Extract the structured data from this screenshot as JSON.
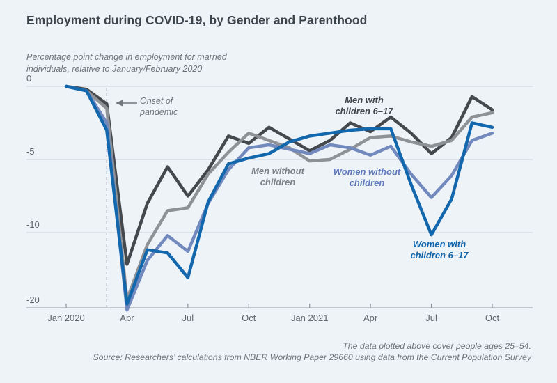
{
  "page": {
    "title": "Employment during COVID-19, by Gender and Parenthood",
    "subtitle_line1": "Percentage point change in employment for married",
    "subtitle_line2": "individuals, relative to January/February 2020",
    "footnote_line1": "The data plotted above cover people ages 25–54.",
    "footnote_line2": "Source: Researchers’ calculations from NBER Working Paper 29660 using data from the Current Population Survey"
  },
  "chart_data": {
    "type": "line",
    "title": "Employment during COVID-19, by Gender and Parenthood",
    "subtitle": "Percentage point change in employment for married individuals, relative to January/February 2020",
    "x": [
      "Jan 2020",
      "Feb 2020",
      "Mar 2020",
      "Apr 2020",
      "May 2020",
      "Jun 2020",
      "Jul 2020",
      "Aug 2020",
      "Sep 2020",
      "Oct 2020",
      "Nov 2020",
      "Dec 2020",
      "Jan 2021",
      "Feb 2021",
      "Mar 2021",
      "Apr 2021",
      "May 2021",
      "Jun 2021",
      "Jul 2021",
      "Aug 2021",
      "Sep 2021",
      "Oct 2021"
    ],
    "x_tick_positions": [
      0,
      3,
      6,
      9,
      12,
      15,
      18,
      21
    ],
    "x_tick_labels": [
      "Jan 2020",
      "Apr",
      "Jul",
      "Oct",
      "Jan 2021",
      "Apr",
      "Jul",
      "Oct"
    ],
    "y_ticks": [
      0,
      -5,
      -10,
      -20
    ],
    "ylim": [
      -20.5,
      0.5
    ],
    "grid": "horizontal gridlines at 0, -5, -10; axis line at -20; segment below -10 is compressed",
    "legend_position": "labels placed next to lines",
    "annotation": {
      "lines": [
        "Onset of",
        "pandemic"
      ],
      "points_to": "Mar 2020",
      "style": "dashed vertical line with left arrow"
    },
    "series": [
      {
        "name": "Men with children 6-17",
        "label_lines": [
          "Men with",
          "children 6–17"
        ],
        "color": "#45494e",
        "values": [
          0,
          -0.2,
          -1.2,
          -14.2,
          -8.0,
          -5.5,
          -7.5,
          -5.7,
          -3.4,
          -3.9,
          -2.8,
          -3.6,
          -4.4,
          -3.7,
          -2.5,
          -3.1,
          -2.1,
          -3.2,
          -4.6,
          -3.5,
          -0.7,
          -1.6
        ]
      },
      {
        "name": "Men without children",
        "label_lines": [
          "Men without",
          "children"
        ],
        "color": "#8e9195",
        "values": [
          0,
          -0.3,
          -1.5,
          -18.9,
          -11.6,
          -8.5,
          -8.3,
          -6.0,
          -4.5,
          -3.2,
          -3.7,
          -4.2,
          -5.1,
          -5.0,
          -4.3,
          -3.5,
          -3.4,
          -3.8,
          -4.1,
          -3.7,
          -2.1,
          -1.8
        ]
      },
      {
        "name": "Women without children",
        "label_lines": [
          "Women without",
          "children"
        ],
        "color": "#7289be",
        "values": [
          0,
          -0.3,
          -2.5,
          -20.3,
          -13.7,
          -10.4,
          -12.5,
          -8.0,
          -5.7,
          -4.2,
          -4.0,
          -4.3,
          -4.6,
          -4.0,
          -4.2,
          -4.7,
          -4.1,
          -6.0,
          -7.6,
          -6.1,
          -3.7,
          -3.2
        ]
      },
      {
        "name": "Women with children 6-17",
        "label_lines": [
          "Women with",
          "children 6–17"
        ],
        "color": "#1368ad",
        "values": [
          0,
          -0.3,
          -3.0,
          -19.5,
          -12.3,
          -12.7,
          -16.0,
          -7.9,
          -5.3,
          -4.9,
          -4.6,
          -3.8,
          -3.4,
          -3.2,
          -3.0,
          -2.9,
          -2.9,
          -6.7,
          -10.3,
          -7.7,
          -2.5,
          -2.8
        ]
      }
    ]
  }
}
